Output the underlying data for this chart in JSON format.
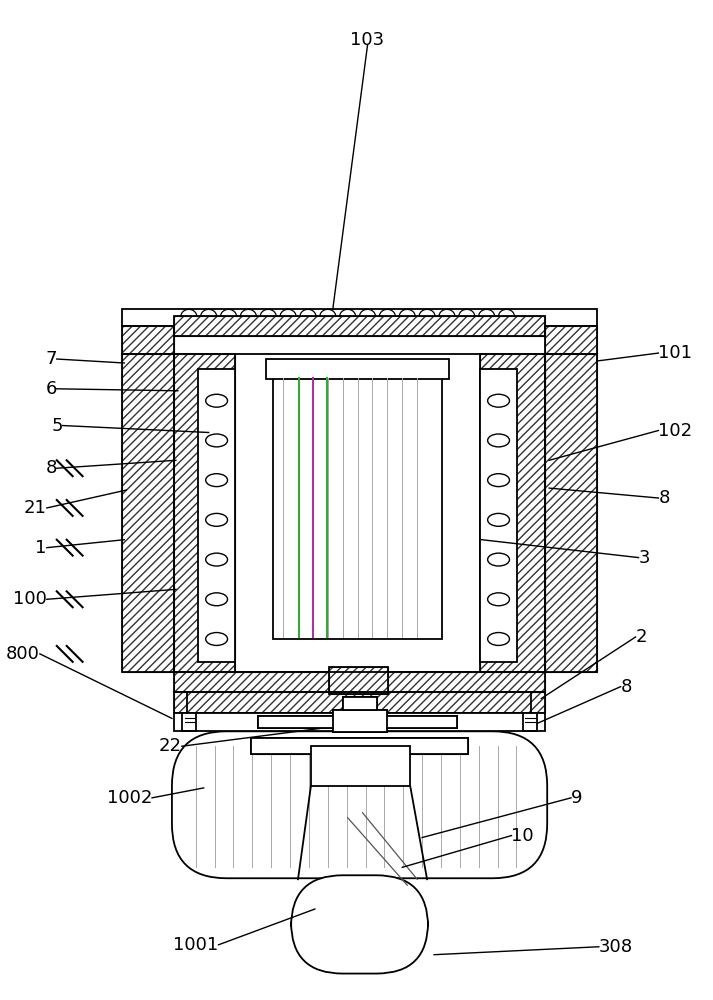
{
  "bg_color": "#ffffff",
  "line_color": "#000000",
  "fig_width": 7.13,
  "fig_height": 10.0,
  "label_fs": 13
}
